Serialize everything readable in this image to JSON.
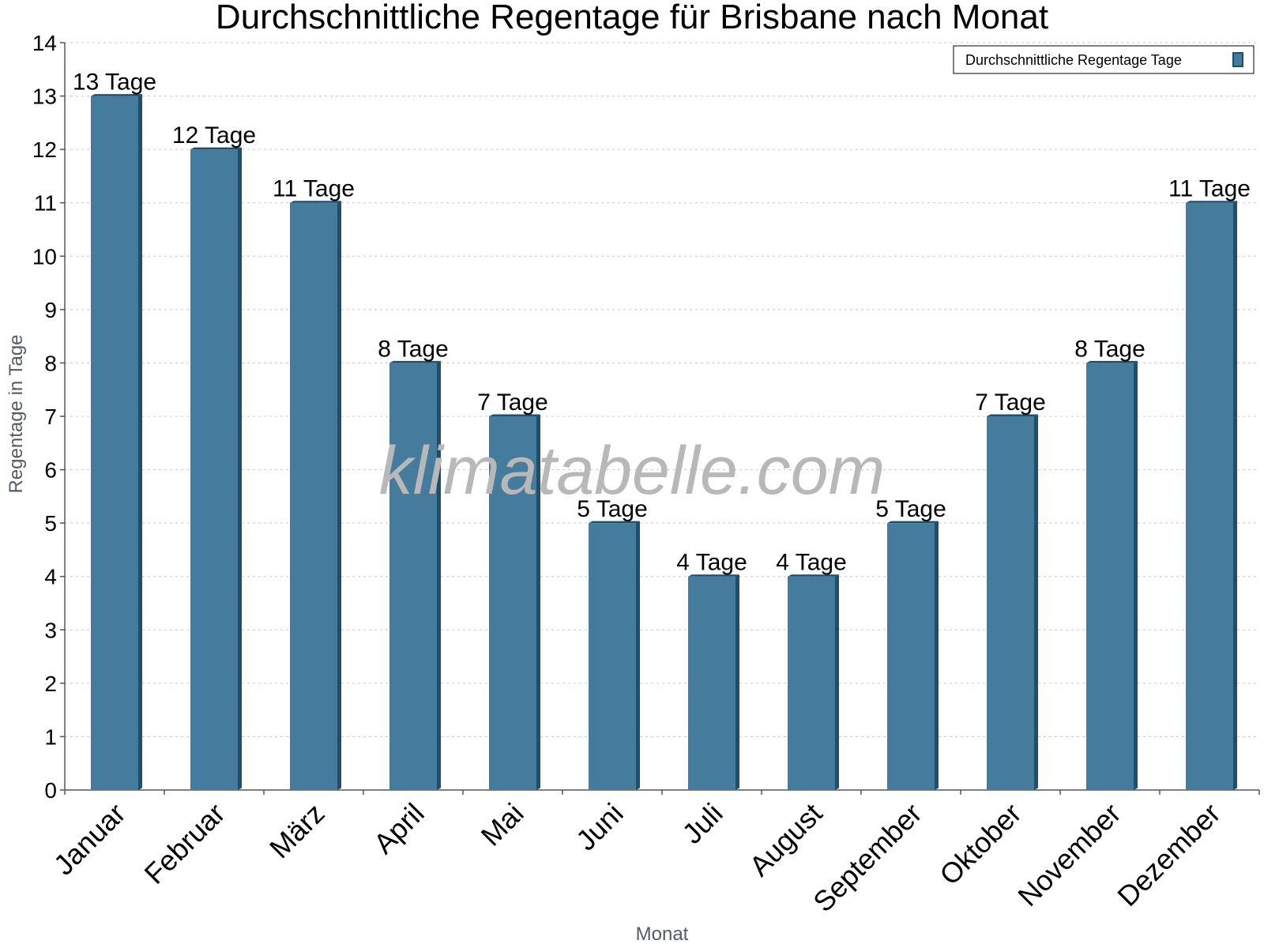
{
  "watermark": "klimatabelle.com",
  "colors": {
    "bar": "#457b9d",
    "bar_side": "#1d4e6e",
    "grid": "#c8c8c8",
    "axis": "#555555"
  },
  "chart_data": {
    "type": "bar",
    "title": "Durchschnittliche Regentage für Brisbane nach Monat",
    "xlabel": "Monat",
    "ylabel": "Regentage in Tage",
    "ylim": [
      0,
      14
    ],
    "yticks": [
      0,
      1,
      2,
      3,
      4,
      5,
      6,
      7,
      8,
      9,
      10,
      11,
      12,
      13,
      14
    ],
    "grid": true,
    "legend_position": "top-right",
    "categories": [
      "Januar",
      "Februar",
      "März",
      "April",
      "Mai",
      "Juni",
      "Juli",
      "August",
      "September",
      "Oktober",
      "November",
      "Dezember"
    ],
    "series": [
      {
        "name": "Durchschnittliche Regentage Tage",
        "values": [
          13,
          12,
          11,
          8,
          7,
          5,
          4,
          4,
          5,
          7,
          8,
          11
        ],
        "labels": [
          "13 Tage",
          "12 Tage",
          "11 Tage",
          "8 Tage",
          "7 Tage",
          "5 Tage",
          "4 Tage",
          "4 Tage",
          "5 Tage",
          "7 Tage",
          "8 Tage",
          "11 Tage"
        ]
      }
    ]
  }
}
